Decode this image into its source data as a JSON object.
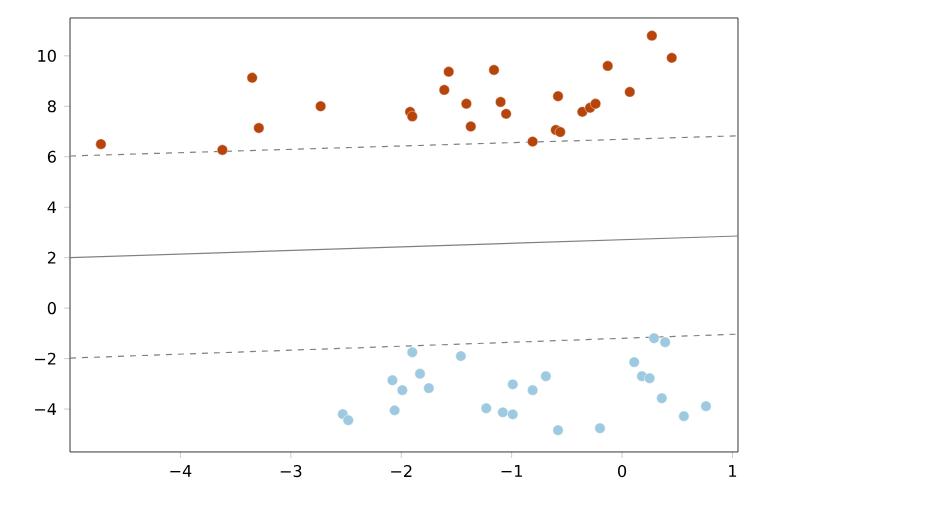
{
  "chart_data": {
    "type": "scatter",
    "xlim": [
      -5,
      1.05
    ],
    "ylim": [
      -5.7,
      11.5
    ],
    "xticks": [
      {
        "value": -4,
        "label": "−4"
      },
      {
        "value": -3,
        "label": "−3"
      },
      {
        "value": -2,
        "label": "−2"
      },
      {
        "value": -1,
        "label": "−1"
      },
      0,
      1
    ],
    "yticks": [
      {
        "value": -4,
        "label": "−4"
      },
      {
        "value": -2,
        "label": "−2"
      },
      0,
      2,
      4,
      6,
      8,
      10
    ],
    "series": [
      {
        "color": "#b5450b",
        "marker": "circle",
        "x": [
          -4.72,
          -3.62,
          -3.35,
          -3.29,
          -2.73,
          -1.92,
          -1.9,
          -1.61,
          -1.57,
          -1.41,
          -1.37,
          -1.16,
          -1.1,
          -1.05,
          -0.81,
          -0.6,
          -0.56,
          -0.58,
          -0.36,
          -0.29,
          -0.24,
          -0.13,
          0.07,
          0.27,
          0.45
        ],
        "values": [
          6.5,
          6.27,
          9.13,
          7.14,
          8.0,
          7.78,
          7.6,
          8.65,
          9.37,
          8.1,
          7.2,
          9.44,
          8.17,
          7.7,
          6.6,
          7.06,
          6.98,
          8.4,
          7.78,
          7.94,
          8.1,
          9.6,
          8.57,
          10.8,
          9.92
        ]
      },
      {
        "color": "#9ecae1",
        "marker": "circle",
        "x": [
          -1.9,
          -1.46,
          -2.08,
          -1.99,
          -1.83,
          -1.75,
          -2.53,
          -2.48,
          -2.06,
          -1.23,
          -1.08,
          -0.99,
          -0.99,
          -0.81,
          -0.69,
          -0.58,
          -0.2,
          0.11,
          0.18,
          0.25,
          0.29,
          0.39,
          0.36,
          0.56,
          0.76
        ],
        "values": [
          -1.75,
          -1.9,
          -2.86,
          -3.25,
          -2.6,
          -3.17,
          -4.2,
          -4.44,
          -4.05,
          -3.97,
          -4.13,
          -4.21,
          -3.02,
          -3.25,
          -2.7,
          -4.84,
          -4.76,
          -2.14,
          -2.7,
          -2.78,
          -1.19,
          -1.35,
          -3.57,
          -4.28,
          -3.89
        ]
      },
      {
        "type": "line",
        "color": "#808080",
        "line_style": "solid",
        "marker": "none",
        "x": [
          -5,
          1.05
        ],
        "values": [
          2.0,
          2.86
        ]
      },
      {
        "type": "line",
        "color": "#808080",
        "line_style": "dashed",
        "marker": "none",
        "x": [
          -5,
          1.05
        ],
        "values": [
          6.03,
          6.83
        ]
      },
      {
        "type": "line",
        "color": "#808080",
        "line_style": "dashed",
        "marker": "none",
        "x": [
          -5,
          1.05
        ],
        "values": [
          -1.98,
          -1.03
        ]
      }
    ]
  }
}
